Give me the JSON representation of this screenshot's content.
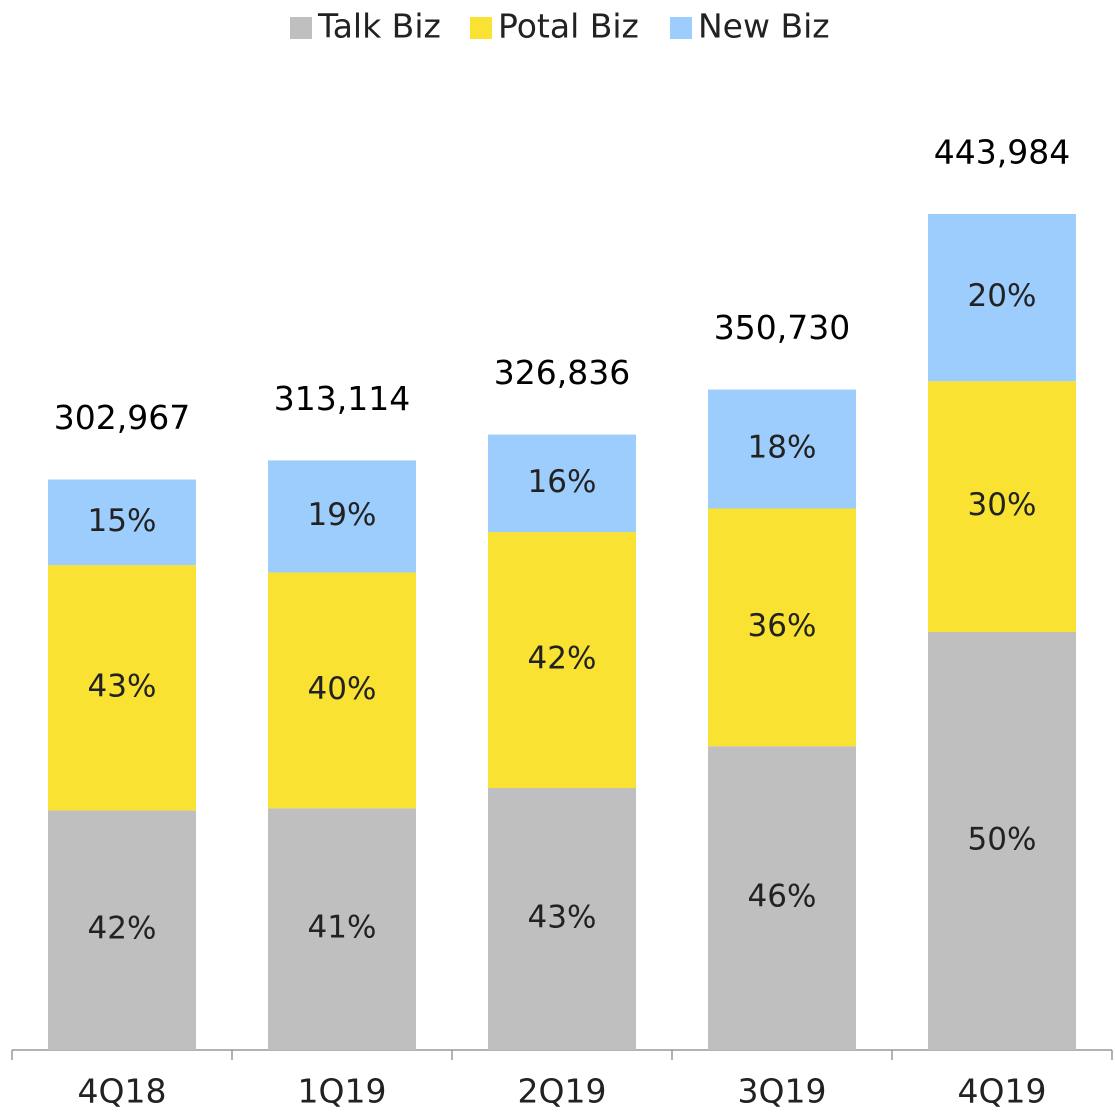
{
  "chart_data": {
    "type": "stacked_bar",
    "categories": [
      "4Q18",
      "1Q19",
      "2Q19",
      "3Q19",
      "4Q19"
    ],
    "totals": {
      "values": [
        302967,
        313114,
        326836,
        350730,
        443984
      ],
      "value_labels": [
        "302,967",
        "313,114",
        "326,836",
        "350,730",
        "443,984"
      ]
    },
    "series": [
      {
        "name": "Talk Biz",
        "color": "#bfbfbf",
        "values": [
          42,
          41,
          43,
          46,
          50
        ],
        "value_labels": [
          "42%",
          "41%",
          "43%",
          "46%",
          "50%"
        ]
      },
      {
        "name": "Potal Biz",
        "color": "#f9e231",
        "values": [
          43,
          40,
          42,
          36,
          30
        ],
        "value_labels": [
          "43%",
          "40%",
          "42%",
          "36%",
          "30%"
        ]
      },
      {
        "name": "New Biz",
        "color": "#9dcdfc",
        "values": [
          15,
          19,
          16,
          18,
          20
        ],
        "value_labels": [
          "15%",
          "19%",
          "16%",
          "18%",
          "20%"
        ]
      }
    ],
    "legend": "top"
  }
}
